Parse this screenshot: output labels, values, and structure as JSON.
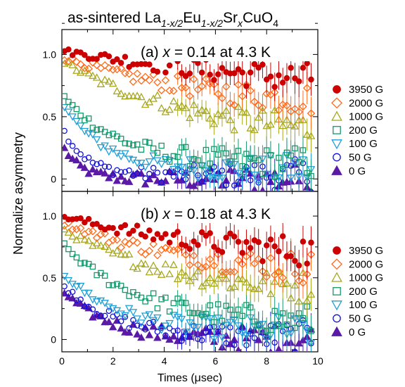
{
  "figure": {
    "title_main": "as-sintered La",
    "title_sub1": "1-x/2",
    "title_mid": "Eu",
    "title_sub2": "1-x/2",
    "title_sr": "Sr",
    "title_sub3": "x",
    "title_end": "CuO",
    "title_sub4": "4",
    "ylabel": "Normalize asymmetry",
    "xlabel": "Times (μsec)"
  },
  "chart_data": [
    {
      "type": "scatter",
      "panel_label_prefix": "(a) ",
      "panel_label_var": "x",
      "panel_label_rest": " = 0.14 at 4.3 K",
      "xlim": [
        0,
        10
      ],
      "ylim": [
        -0.1,
        1.2
      ],
      "x_ticks": [
        0,
        2,
        4,
        6,
        8,
        10
      ],
      "y_ticks": [
        0,
        0.5,
        1.0
      ],
      "y_tick_labels": [
        "0",
        "0.5",
        "1.0"
      ],
      "legend_position": "right",
      "series": [
        {
          "name": "3950 G",
          "marker": "circle-filled",
          "color": "#cc0000",
          "start": 1.03,
          "end": 0.62,
          "tau": 12,
          "offset": 0.0
        },
        {
          "name": "2000 G",
          "marker": "diamond-open",
          "color": "#ff6a1a",
          "start": 0.98,
          "end": 0.55,
          "tau": 6,
          "offset": 0.0
        },
        {
          "name": "1000 G",
          "marker": "triangle-up-open",
          "color": "#a8a81f",
          "start": 0.95,
          "end": 0.32,
          "tau": 5,
          "offset": 0.0
        },
        {
          "name": "200 G",
          "marker": "square-open",
          "color": "#14996b",
          "start": 0.68,
          "end": 0.12,
          "tau": 2.2,
          "offset": 0.0
        },
        {
          "name": "100 G",
          "marker": "triangle-down-open",
          "color": "#1f9fd6",
          "start": 0.62,
          "end": 0.07,
          "tau": 1.6,
          "offset": 0.0
        },
        {
          "name": "50 G",
          "marker": "circle-open",
          "color": "#1111dd",
          "start": 0.42,
          "end": 0.03,
          "tau": 0.9,
          "offset": 0.0
        },
        {
          "name": "0 G",
          "marker": "triangle-up-filled",
          "color": "#5a1aa6",
          "start": 0.28,
          "end": 0.0,
          "tau": 0.7,
          "offset": 0.0
        }
      ]
    },
    {
      "type": "scatter",
      "panel_label_prefix": "(b) ",
      "panel_label_var": "x",
      "panel_label_rest": " = 0.18 at 4.3 K",
      "xlim": [
        0,
        10
      ],
      "ylim": [
        -0.1,
        1.2
      ],
      "x_ticks": [
        0,
        2,
        4,
        6,
        8,
        10
      ],
      "x_tick_labels": [
        "0",
        "2",
        "4",
        "6",
        "8",
        "10"
      ],
      "y_ticks": [
        0,
        0.5,
        1.0
      ],
      "y_tick_labels": [
        "0",
        "0.5",
        "1.0"
      ],
      "legend_position": "right",
      "series": [
        {
          "name": "3950 G",
          "marker": "circle-filled",
          "color": "#cc0000",
          "start": 1.0,
          "end": 0.62,
          "tau": 7,
          "offset": 0.0
        },
        {
          "name": "2000 G",
          "marker": "diamond-open",
          "color": "#ff6a1a",
          "start": 0.95,
          "end": 0.52,
          "tau": 5,
          "offset": 0.0
        },
        {
          "name": "1000 G",
          "marker": "triangle-up-open",
          "color": "#a8a81f",
          "start": 0.9,
          "end": 0.38,
          "tau": 4,
          "offset": 0.0
        },
        {
          "name": "200 G",
          "marker": "square-open",
          "color": "#14996b",
          "start": 0.78,
          "end": 0.12,
          "tau": 3.0,
          "offset": 0.0
        },
        {
          "name": "100 G",
          "marker": "triangle-down-open",
          "color": "#1f9fd6",
          "start": 0.55,
          "end": 0.06,
          "tau": 2.2,
          "offset": 0.0
        },
        {
          "name": "50 G",
          "marker": "circle-open",
          "color": "#1111dd",
          "start": 0.45,
          "end": 0.02,
          "tau": 2.0,
          "offset": 0.0
        },
        {
          "name": "0 G",
          "marker": "triangle-up-filled",
          "color": "#5a1aa6",
          "start": 0.4,
          "end": 0.0,
          "tau": 1.8,
          "offset": 0.0
        }
      ]
    }
  ]
}
